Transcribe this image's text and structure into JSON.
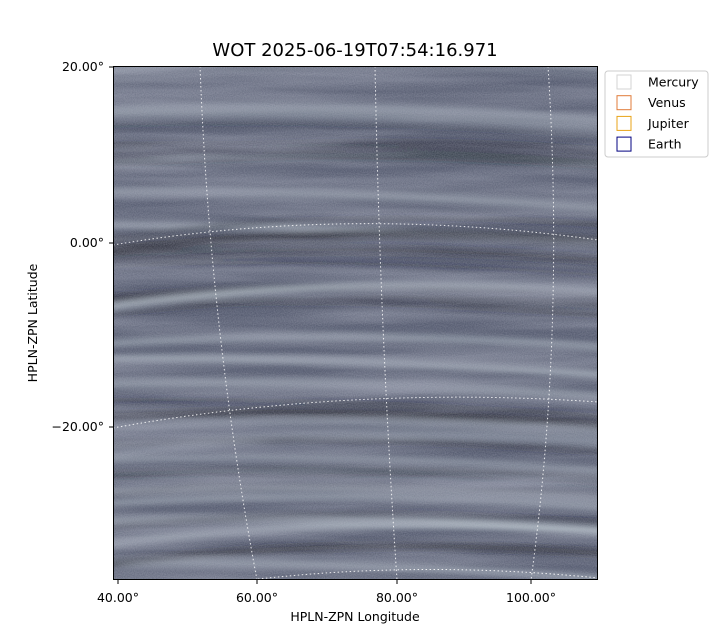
{
  "title": "WOT 2025-06-19T07:54:16.971",
  "x_axis": {
    "label": "HPLN-ZPN Longitude",
    "ticks": [
      "40.00°",
      "60.00°",
      "80.00°",
      "100.00°"
    ]
  },
  "y_axis": {
    "label": "HPLN-ZPN Latitude",
    "ticks": [
      "20.00°",
      "0.00°",
      "−20.00°"
    ]
  },
  "legend": [
    {
      "name": "Mercury",
      "color": "#d3d3d3"
    },
    {
      "name": "Venus",
      "color": "#e07b39"
    },
    {
      "name": "Jupiter",
      "color": "#e8a317"
    },
    {
      "name": "Earth",
      "color": "#000080"
    }
  ]
}
